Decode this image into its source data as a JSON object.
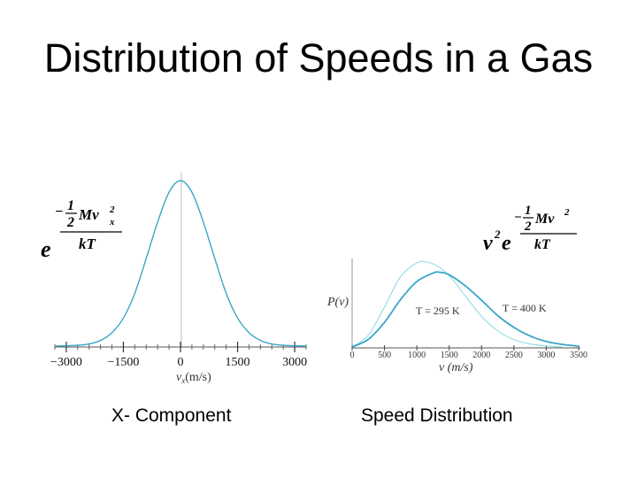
{
  "slide": {
    "title": "Distribution of Speeds in a Gas",
    "caption_left": "X- Component",
    "caption_right": "Speed Distribution"
  },
  "formulas": {
    "left": {
      "base": "e",
      "sign": "−",
      "num_frac": "1",
      "num_den": "2",
      "num_expr": "Mv",
      "sub": "x",
      "sup": "2",
      "den": "kT"
    },
    "right": {
      "prefix": "v",
      "prefix_sup": "2",
      "base": "e",
      "sign": "−",
      "num_frac": "1",
      "num_den": "2",
      "num_expr": "Mv",
      "sup": "2",
      "den": "kT"
    }
  },
  "colors": {
    "curve": "#3aa6c8",
    "curve_light": "#8fdde4",
    "axis": "#555555"
  },
  "chart_data": [
    {
      "type": "line",
      "title": "",
      "xlabel": "v_x (m/s)",
      "ylabel": "",
      "xlim": [
        -3300,
        3300
      ],
      "ylim": [
        0,
        1
      ],
      "x_ticks": [
        -3000,
        -1500,
        0,
        1500,
        3000
      ],
      "x_tick_labels": [
        "−3000",
        "−1500",
        "0",
        "1500",
        "3000"
      ],
      "xlabel_main": "v",
      "xlabel_sub": "x",
      "xlabel_rest": "(m/s)",
      "series": [
        {
          "x": [
            -3300,
            -2700,
            -2400,
            -2100,
            -1800,
            -1500,
            -1200,
            -900,
            -600,
            -300,
            0,
            300,
            600,
            900,
            1200,
            1500,
            1800,
            2100,
            2400,
            2700,
            3300
          ],
          "y": [
            0.0,
            0.005,
            0.013,
            0.034,
            0.081,
            0.17,
            0.32,
            0.53,
            0.75,
            0.93,
            1.0,
            0.93,
            0.75,
            0.53,
            0.32,
            0.17,
            0.081,
            0.034,
            0.013,
            0.005,
            0.0
          ]
        }
      ]
    },
    {
      "type": "line",
      "title": "",
      "xlabel": "v (m/s)",
      "ylabel": "P(v)",
      "xlim": [
        0,
        3500
      ],
      "ylim": [
        0,
        1
      ],
      "x_ticks": [
        0,
        500,
        1000,
        1500,
        2000,
        2500,
        3000,
        3500
      ],
      "x_tick_labels": [
        "0",
        "500",
        "1000",
        "1500",
        "2000",
        "2500",
        "3000",
        "3500"
      ],
      "annotations": [
        {
          "text": "T = 295 K",
          "x": 1300,
          "y": 0.55
        },
        {
          "text": "T = 400 K",
          "x": 2550,
          "y": 0.55
        }
      ],
      "series": [
        {
          "name": "T = 295 K",
          "x": [
            0,
            250,
            500,
            750,
            1000,
            1150,
            1300,
            1500,
            1750,
            2000,
            2250,
            2500,
            2750,
            3000,
            3250
          ],
          "y": [
            0.0,
            0.14,
            0.47,
            0.83,
            0.99,
            1.0,
            0.96,
            0.84,
            0.6,
            0.36,
            0.19,
            0.085,
            0.035,
            0.012,
            0.0
          ]
        },
        {
          "name": "T = 400 K",
          "x": [
            0,
            250,
            500,
            750,
            1000,
            1250,
            1350,
            1500,
            1750,
            2000,
            2250,
            2500,
            2750,
            3000,
            3250,
            3500
          ],
          "y": [
            0.0,
            0.09,
            0.29,
            0.56,
            0.77,
            0.87,
            0.88,
            0.85,
            0.72,
            0.55,
            0.37,
            0.23,
            0.13,
            0.065,
            0.03,
            0.01
          ]
        }
      ]
    }
  ]
}
